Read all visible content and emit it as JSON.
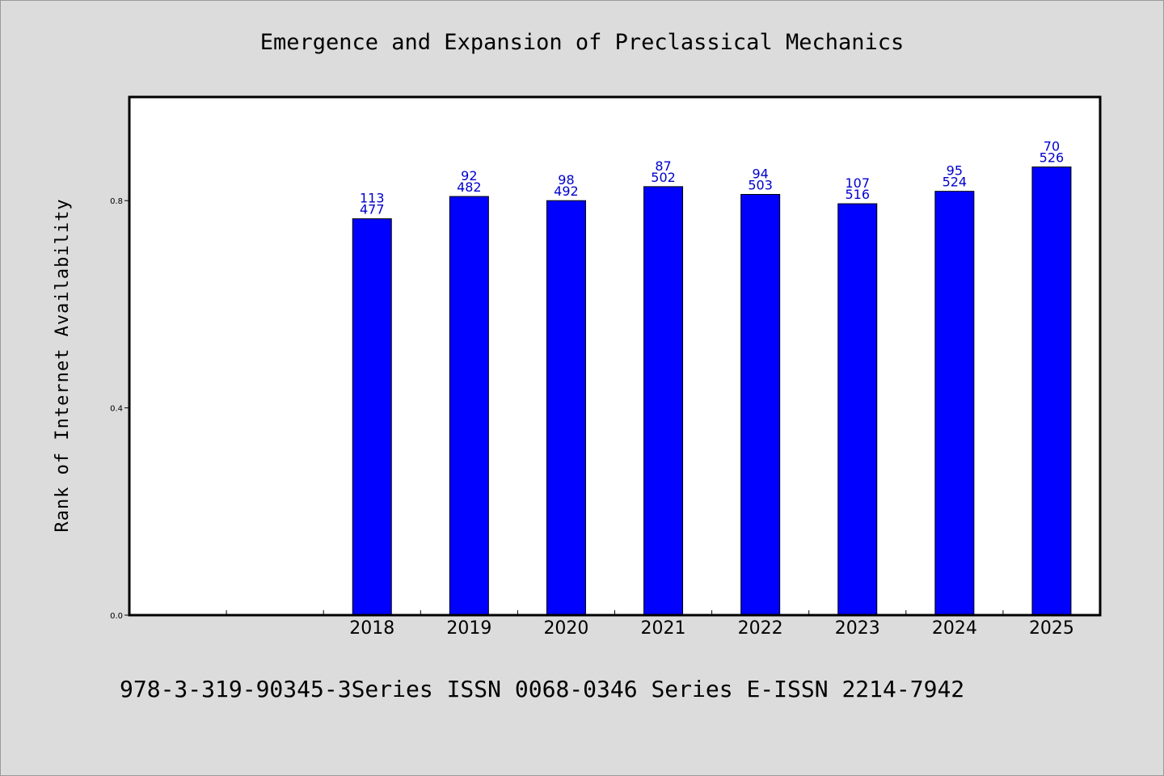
{
  "chart_data": {
    "type": "bar",
    "title": "Emergence and Expansion of Preclassical Mechanics",
    "xlabel": "",
    "ylabel": "Rank of Internet Availability",
    "categories": [
      "2018",
      "2019",
      "2020",
      "2021",
      "2022",
      "2023",
      "2024",
      "2025"
    ],
    "values": [
      0.765,
      0.808,
      0.8,
      0.827,
      0.812,
      0.794,
      0.818,
      0.865
    ],
    "labels_top": [
      "113",
      "92",
      "98",
      "87",
      "94",
      "107",
      "95",
      "70"
    ],
    "labels_bottom": [
      "477",
      "482",
      "492",
      "502",
      "503",
      "516",
      "524",
      "526"
    ],
    "ylim": [
      0,
      1.0
    ],
    "yticks": [
      0.0,
      0.4,
      0.8
    ],
    "ytick_labels": [
      "0.0",
      "0.4",
      "0.8"
    ],
    "grid": false,
    "legend": "none",
    "bar_color": "#0000ff",
    "label_color": "#0000cc",
    "footer": "978-3-319-90345-3Series ISSN 0068-0346 Series E-ISSN 2214-7942"
  }
}
